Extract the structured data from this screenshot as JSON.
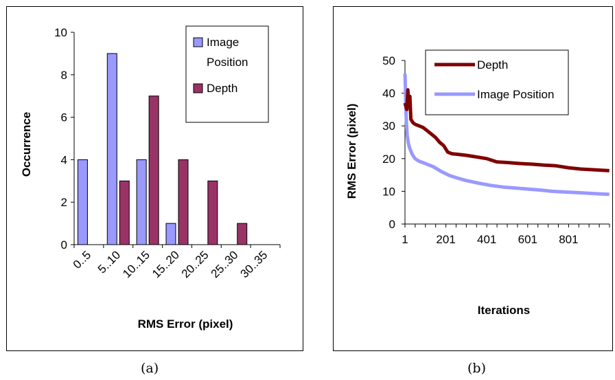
{
  "chart_data": [
    {
      "type": "bar",
      "caption": "(a)",
      "categories": [
        "0..5",
        "5..10",
        "10..15",
        "15..20",
        "20..25",
        "25..30",
        "30..35"
      ],
      "series": [
        {
          "name": "Image Position",
          "values": [
            4,
            9,
            4,
            1,
            0,
            0,
            0
          ],
          "color": "#9999ff"
        },
        {
          "name": "Depth",
          "values": [
            0,
            3,
            7,
            4,
            3,
            1,
            0
          ],
          "color": "#993366"
        }
      ],
      "xlabel": "RMS Error (pixel)",
      "ylabel": "Occurrence",
      "ylim": [
        0,
        10
      ],
      "yticks": [
        "0",
        "2",
        "4",
        "6",
        "8",
        "10"
      ],
      "legend": {
        "position": "top-right",
        "labels": [
          "Image",
          "Position",
          "Depth"
        ]
      },
      "grid": false
    },
    {
      "type": "line",
      "caption": "(b)",
      "xlabel": "Iterations",
      "ylabel": "RMS Error (pixel)",
      "xlim": [
        1,
        1001
      ],
      "ylim": [
        0,
        50
      ],
      "xticks": [
        "1",
        "201",
        "401",
        "601",
        "801"
      ],
      "yticks": [
        "0",
        "10",
        "20",
        "30",
        "40",
        "50"
      ],
      "series": [
        {
          "name": "Depth",
          "color": "#800000",
          "x": [
            1,
            10,
            15,
            20,
            25,
            30,
            40,
            50,
            70,
            90,
            110,
            130,
            150,
            170,
            190,
            210,
            230,
            260,
            300,
            350,
            400,
            450,
            500,
            560,
            620,
            680,
            740,
            800,
            860,
            920,
            1000
          ],
          "y": [
            37,
            35,
            41,
            37,
            39,
            32,
            31,
            30.5,
            30,
            29.5,
            28.5,
            27.5,
            26.5,
            25,
            24,
            22,
            21.5,
            21.3,
            21,
            20.5,
            20,
            19,
            18.8,
            18.5,
            18.3,
            18,
            17.8,
            17.2,
            16.8,
            16.6,
            16.3
          ]
        },
        {
          "name": "Image Position",
          "color": "#9999ff",
          "x": [
            1,
            3,
            5,
            8,
            12,
            18,
            25,
            35,
            50,
            70,
            100,
            140,
            180,
            220,
            260,
            300,
            360,
            420,
            480,
            540,
            600,
            660,
            720,
            780,
            840,
            900,
            960,
            1000
          ],
          "y": [
            46,
            42,
            36,
            31,
            27,
            24.5,
            23,
            21.5,
            20,
            19.2,
            18.5,
            17.5,
            16,
            14.8,
            14,
            13.3,
            12.5,
            11.8,
            11.3,
            11,
            10.7,
            10.4,
            10,
            9.8,
            9.6,
            9.4,
            9.2,
            9.1
          ]
        }
      ],
      "legend": {
        "position": "top-right",
        "labels": [
          "Depth",
          "Image Position"
        ]
      },
      "grid": false
    }
  ]
}
